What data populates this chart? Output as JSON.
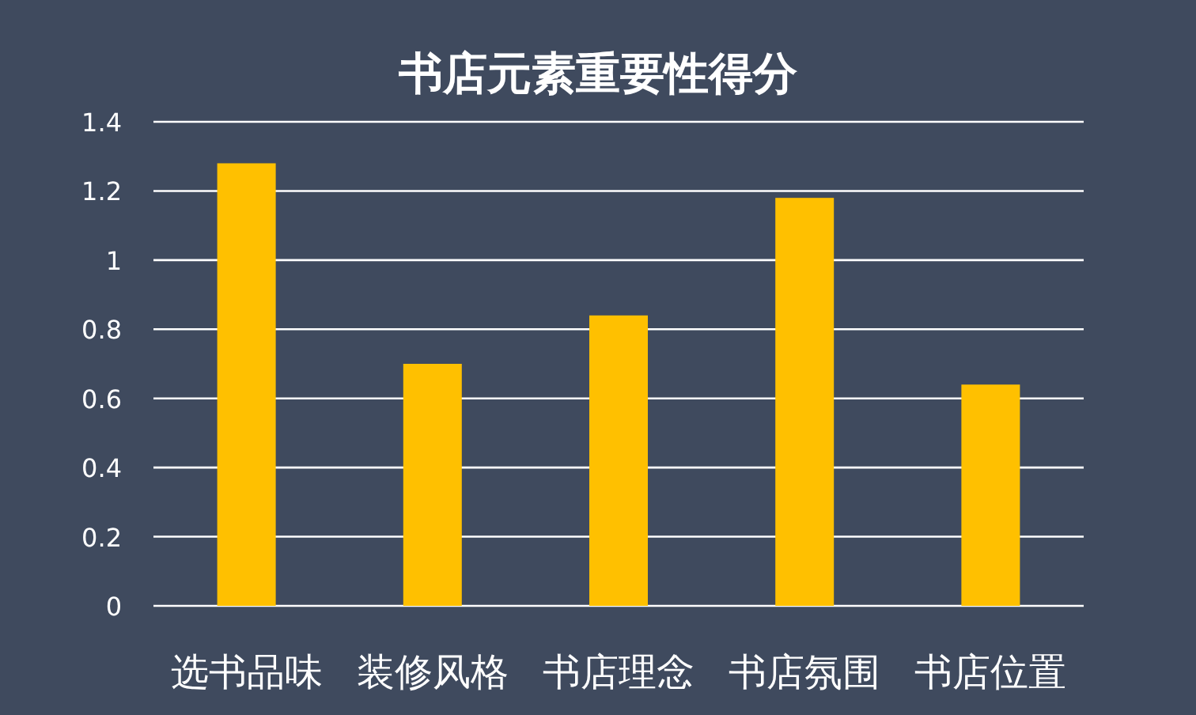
{
  "chart_data": {
    "type": "bar",
    "title": "书店元素重要性得分",
    "categories": [
      "选书品味",
      "装修风格",
      "书店理念",
      "书店氛围",
      "书店位置"
    ],
    "values": [
      1.28,
      0.7,
      0.84,
      1.18,
      0.64
    ],
    "color": "#ffc000",
    "ylim": [
      0,
      1.4
    ],
    "yticks": [
      0,
      0.2,
      0.4,
      0.6,
      0.8,
      1,
      1.2,
      1.4
    ],
    "grid": "y"
  }
}
